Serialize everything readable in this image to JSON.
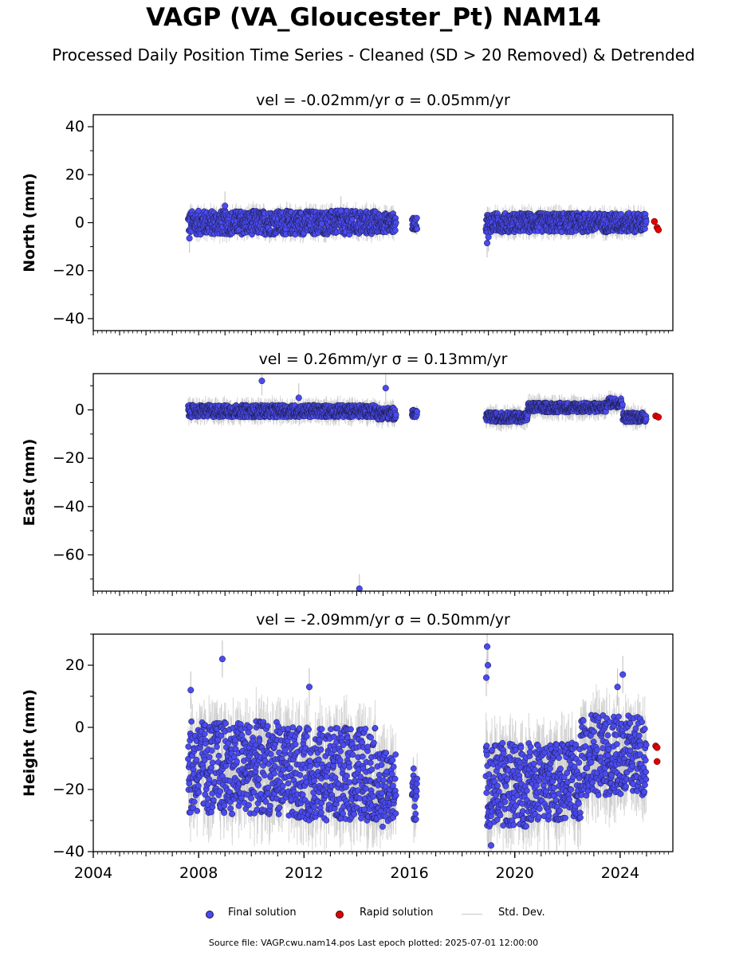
{
  "title": "VAGP (VA_Gloucester_Pt) NAM14",
  "subtitle": "Processed Daily Position Time Series - Cleaned (SD > 20 Removed) & Detrended",
  "legend": {
    "final": "Final solution",
    "rapid": "Rapid solution",
    "std": "Std. Dev."
  },
  "source": "Source file: VAGP.cwu.nam14.pos  Last epoch plotted: 2025-07-01 12:00:00",
  "colors": {
    "final": "#4a4af0",
    "rapid": "#e00000",
    "std": "#c8c8c8",
    "edge": "#1a1a40"
  },
  "chart_data": [
    {
      "type": "scatter",
      "panel": "north",
      "title": "vel = -0.02mm/yr   σ = 0.05mm/yr",
      "xlabel": "",
      "ylabel": "North (mm)",
      "xlim": [
        2004,
        2026
      ],
      "ylim": [
        -45,
        45
      ],
      "yticks": [
        -40,
        -20,
        0,
        20,
        40
      ],
      "segments": [
        {
          "x": [
            2007.6,
            2011.1
          ],
          "y": [
            -5,
            5
          ],
          "err": 3
        },
        {
          "x": [
            2011.1,
            2014.8
          ],
          "y": [
            -5,
            5
          ],
          "err": 3
        },
        {
          "x": [
            2014.8,
            2015.5
          ],
          "y": [
            -4,
            4
          ],
          "err": 3
        },
        {
          "x": [
            2016.1,
            2016.3
          ],
          "y": [
            -3,
            2
          ],
          "err": 2
        },
        {
          "x": [
            2018.9,
            2025.0
          ],
          "y": [
            -4,
            4
          ],
          "err": 3
        }
      ],
      "outliers": [
        [
          2007.65,
          -6.5
        ],
        [
          2018.95,
          -8.5
        ],
        [
          2019.0,
          -6
        ],
        [
          2009.0,
          7
        ],
        [
          2013.4,
          5
        ]
      ],
      "rapid": [
        [
          2025.3,
          0.5
        ],
        [
          2025.4,
          -2
        ],
        [
          2025.45,
          -3
        ]
      ]
    },
    {
      "type": "scatter",
      "panel": "east",
      "title": "vel = 0.26mm/yr   σ = 0.13mm/yr",
      "xlabel": "",
      "ylabel": "East (mm)",
      "xlim": [
        2004,
        2026
      ],
      "ylim": [
        -75,
        15
      ],
      "yticks": [
        -60,
        -40,
        -20,
        0
      ],
      "segments": [
        {
          "x": [
            2007.6,
            2014.8
          ],
          "y": [
            -3,
            2
          ],
          "err": 3
        },
        {
          "x": [
            2014.8,
            2015.5
          ],
          "y": [
            -4,
            1
          ],
          "err": 3
        },
        {
          "x": [
            2016.1,
            2016.3
          ],
          "y": [
            -3,
            0
          ],
          "err": 2
        },
        {
          "x": [
            2018.9,
            2020.5
          ],
          "y": [
            -5,
            -1
          ],
          "err": 3
        },
        {
          "x": [
            2020.5,
            2023.5
          ],
          "y": [
            -1,
            3
          ],
          "err": 3
        },
        {
          "x": [
            2023.5,
            2024.1
          ],
          "y": [
            1,
            5
          ],
          "err": 3
        },
        {
          "x": [
            2024.1,
            2025.0
          ],
          "y": [
            -5,
            -1
          ],
          "err": 3
        }
      ],
      "outliers": [
        [
          2010.4,
          12
        ],
        [
          2015.1,
          9
        ],
        [
          2011.8,
          5
        ],
        [
          2014.1,
          -74
        ]
      ],
      "rapid": [
        [
          2025.35,
          -2.5
        ],
        [
          2025.45,
          -3
        ]
      ]
    },
    {
      "type": "scatter",
      "panel": "height",
      "title": "vel = -2.09mm/yr   σ = 0.50mm/yr",
      "xlabel": "",
      "ylabel": "Height (mm)",
      "xlim": [
        2004,
        2026
      ],
      "ylim": [
        -40,
        30
      ],
      "yticks": [
        -40,
        -20,
        0,
        20
      ],
      "xticks": [
        2004,
        2008,
        2012,
        2016,
        2020,
        2024
      ],
      "segments": [
        {
          "x": [
            2007.6,
            2011.1
          ],
          "y": [
            -28,
            2
          ],
          "err": 8
        },
        {
          "x": [
            2011.1,
            2014.8
          ],
          "y": [
            -30,
            0
          ],
          "err": 8
        },
        {
          "x": [
            2014.8,
            2015.5
          ],
          "y": [
            -32,
            -8
          ],
          "err": 8
        },
        {
          "x": [
            2016.1,
            2016.3
          ],
          "y": [
            -30,
            -12
          ],
          "err": 6
        },
        {
          "x": [
            2018.9,
            2020.5
          ],
          "y": [
            -32,
            -5
          ],
          "err": 8
        },
        {
          "x": [
            2020.5,
            2022.5
          ],
          "y": [
            -30,
            -5
          ],
          "err": 8
        },
        {
          "x": [
            2022.5,
            2025.0
          ],
          "y": [
            -22,
            4
          ],
          "err": 8
        }
      ],
      "outliers": [
        [
          2008.9,
          22
        ],
        [
          2012.2,
          13
        ],
        [
          2018.95,
          26
        ],
        [
          2018.92,
          16
        ],
        [
          2018.98,
          20
        ],
        [
          2019.1,
          -38
        ],
        [
          2023.9,
          13
        ],
        [
          2024.1,
          17
        ],
        [
          2007.7,
          12
        ]
      ],
      "rapid": [
        [
          2025.35,
          -6
        ],
        [
          2025.4,
          -6.5
        ],
        [
          2025.4,
          -11
        ]
      ]
    }
  ]
}
